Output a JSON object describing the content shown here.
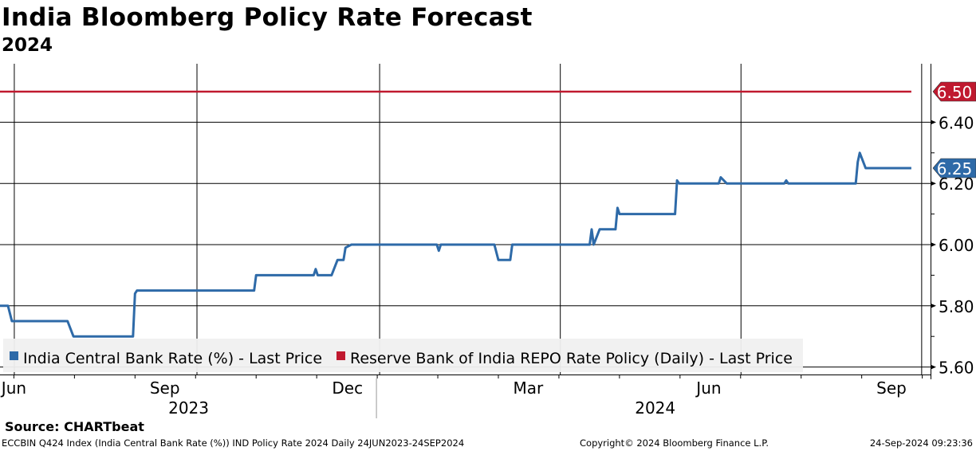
{
  "chart_data": {
    "type": "line",
    "title": "India Bloomberg Policy Rate Forecast",
    "subtitle": "2024",
    "x_unit": "days since 24-Jun-2023",
    "x_range": [
      0,
      459
    ],
    "ylim": [
      5.55,
      6.62
    ],
    "yticks": [
      5.6,
      5.8,
      6.0,
      6.2,
      6.4
    ],
    "ytick_labels": [
      "5.60",
      "5.80",
      "6.00",
      "6.20",
      "6.40"
    ],
    "yminor_ticks": [
      5.7,
      5.9,
      6.1,
      6.3
    ],
    "xgrid_days": [
      7,
      99,
      191,
      282,
      373,
      464
    ],
    "xtick_labels": [
      {
        "label": "Jun",
        "day": 7
      },
      {
        "label": "Sep",
        "day": 83
      },
      {
        "label": "Dec",
        "day": 175
      },
      {
        "label": "Mar",
        "day": 266
      },
      {
        "label": "Jun",
        "day": 357
      },
      {
        "label": "Sep",
        "day": 449
      }
    ],
    "year_labels": [
      {
        "label": "2023",
        "day": 95
      },
      {
        "label": "2024",
        "day": 330
      }
    ],
    "year_divider_day": 191,
    "grid": true,
    "legend_position": "bottom-left",
    "series": [
      {
        "name": "India Central Bank Rate (%) - Last Price",
        "color": "#2e6aa8",
        "last_value_label": "6.25",
        "points": [
          [
            0,
            5.8
          ],
          [
            4,
            5.8
          ],
          [
            6,
            5.75
          ],
          [
            34,
            5.75
          ],
          [
            37,
            5.7
          ],
          [
            67,
            5.7
          ],
          [
            68,
            5.84
          ],
          [
            69,
            5.85
          ],
          [
            128,
            5.85
          ],
          [
            129,
            5.9
          ],
          [
            158,
            5.9
          ],
          [
            159,
            5.92
          ],
          [
            160,
            5.9
          ],
          [
            167,
            5.9
          ],
          [
            170,
            5.95
          ],
          [
            173,
            5.95
          ],
          [
            174,
            5.99
          ],
          [
            177,
            6.0
          ],
          [
            220,
            6.0
          ],
          [
            221,
            5.98
          ],
          [
            222,
            6.0
          ],
          [
            249,
            6.0
          ],
          [
            251,
            5.95
          ],
          [
            257,
            5.95
          ],
          [
            258,
            6.0
          ],
          [
            297,
            6.0
          ],
          [
            298,
            6.05
          ],
          [
            299,
            6.0
          ],
          [
            302,
            6.05
          ],
          [
            310,
            6.05
          ],
          [
            311,
            6.12
          ],
          [
            312,
            6.1
          ],
          [
            340,
            6.1
          ],
          [
            341,
            6.21
          ],
          [
            342,
            6.2
          ],
          [
            362,
            6.2
          ],
          [
            363,
            6.22
          ],
          [
            366,
            6.2
          ],
          [
            395,
            6.2
          ],
          [
            396,
            6.21
          ],
          [
            397,
            6.2
          ],
          [
            431,
            6.2
          ],
          [
            432,
            6.27
          ],
          [
            433,
            6.3
          ],
          [
            436,
            6.25
          ],
          [
            459,
            6.25
          ]
        ]
      },
      {
        "name": "Reserve Bank of India REPO Rate Policy (Daily) - Last Price",
        "color": "#c0192f",
        "last_value_label": "6.50",
        "points": [
          [
            0,
            6.5
          ],
          [
            459,
            6.5
          ]
        ]
      }
    ]
  },
  "footer": {
    "source": "Source: CHARTbeat",
    "description": "ECCBIN Q424 Index (India Central Bank Rate (%)) IND Policy Rate 2024  Daily 24JUN2023-24SEP2024",
    "copyright": "Copyright© 2024 Bloomberg Finance L.P.",
    "timestamp": "24-Sep-2024 09:23:36"
  }
}
